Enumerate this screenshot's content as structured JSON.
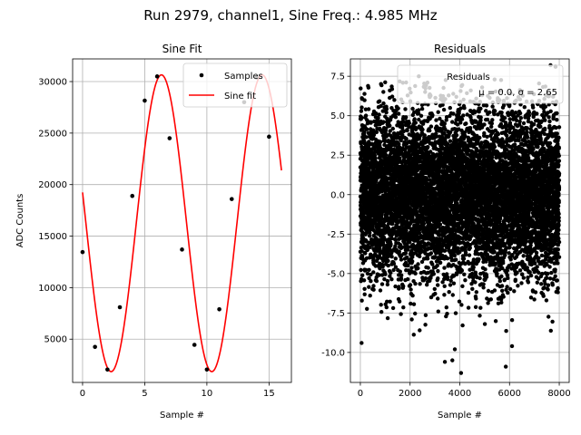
{
  "figure": {
    "suptitle": "Run 2979, channel1, Sine Freq.: 4.985 MHz"
  },
  "chart_data": [
    {
      "type": "scatter+line",
      "title": "Sine Fit",
      "xlabel": "Sample #",
      "ylabel": "ADC Counts",
      "xlim": [
        -0.8,
        16.8
      ],
      "ylim": [
        800,
        32200
      ],
      "xticks": [
        0,
        5,
        10,
        15
      ],
      "yticks": [
        5000,
        10000,
        15000,
        20000,
        25000,
        30000
      ],
      "grid": true,
      "legend_position": "upper right",
      "series": [
        {
          "name": "Samples",
          "style": "points",
          "color": "#000000",
          "x": [
            0,
            1,
            2,
            3,
            4,
            5,
            6,
            7,
            8,
            9,
            10,
            11,
            12,
            13,
            14,
            15
          ],
          "y": [
            13450,
            4250,
            2050,
            8100,
            18900,
            28150,
            30500,
            24500,
            13700,
            4450,
            2050,
            7900,
            18600,
            28000,
            30400,
            24650
          ]
        },
        {
          "name": "Sine fit",
          "style": "line",
          "color": "#ff0000",
          "model": {
            "amplitude": 14400,
            "offset": 16250,
            "period": 8.1,
            "phase_x0": 0.27,
            "x_range": [
              0,
              16
            ]
          }
        }
      ]
    },
    {
      "type": "scatter",
      "title": "Residuals",
      "xlabel": "Sample #",
      "ylabel": "",
      "xlim": [
        -400,
        8400
      ],
      "ylim": [
        -11.9,
        8.6
      ],
      "xticks": [
        0,
        2000,
        4000,
        6000,
        8000
      ],
      "yticks": [
        -10.0,
        -7.5,
        -5.0,
        -2.5,
        0.0,
        2.5,
        5.0,
        7.5
      ],
      "grid": true,
      "legend_position": "upper right",
      "series": [
        {
          "name": "Residuals",
          "stats_label": "μ = 0.0, σ = 2.65",
          "color": "#000000",
          "n_points": 8000,
          "mean": 0.0,
          "sigma": 2.65,
          "x_range": [
            0,
            8000
          ],
          "outliers": [
            {
              "x": 50,
              "y": -9.4
            },
            {
              "x": 3400,
              "y": -10.6
            },
            {
              "x": 3700,
              "y": -10.5
            },
            {
              "x": 3800,
              "y": -9.8
            },
            {
              "x": 4050,
              "y": -11.3
            },
            {
              "x": 5850,
              "y": -10.9
            },
            {
              "x": 6100,
              "y": -9.6
            },
            {
              "x": 2350,
              "y": 7.5
            },
            {
              "x": 7650,
              "y": 8.2
            },
            {
              "x": 7850,
              "y": 8.1
            },
            {
              "x": 2700,
              "y": 7.1
            },
            {
              "x": 5400,
              "y": 7.3
            }
          ]
        }
      ]
    }
  ]
}
